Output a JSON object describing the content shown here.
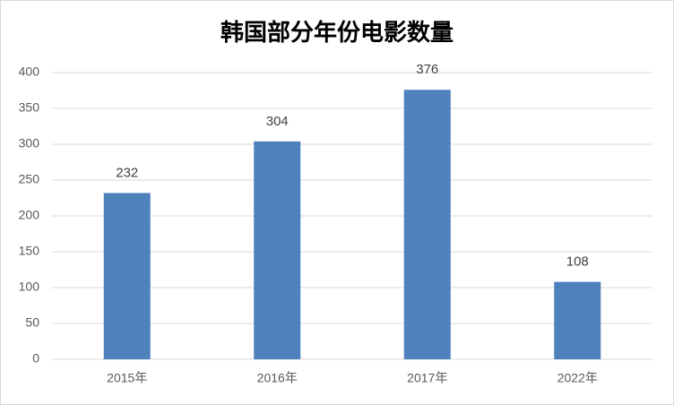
{
  "chart_data": {
    "type": "bar",
    "title": "韩国部分年份电影数量",
    "categories": [
      "2015年",
      "2016年",
      "2017年",
      "2022年"
    ],
    "values": [
      232,
      304,
      376,
      108
    ],
    "color": "#4f81bd",
    "ylim": [
      0,
      400
    ],
    "yticks": [
      0,
      50,
      100,
      150,
      200,
      250,
      300,
      350,
      400
    ],
    "grid": true
  }
}
